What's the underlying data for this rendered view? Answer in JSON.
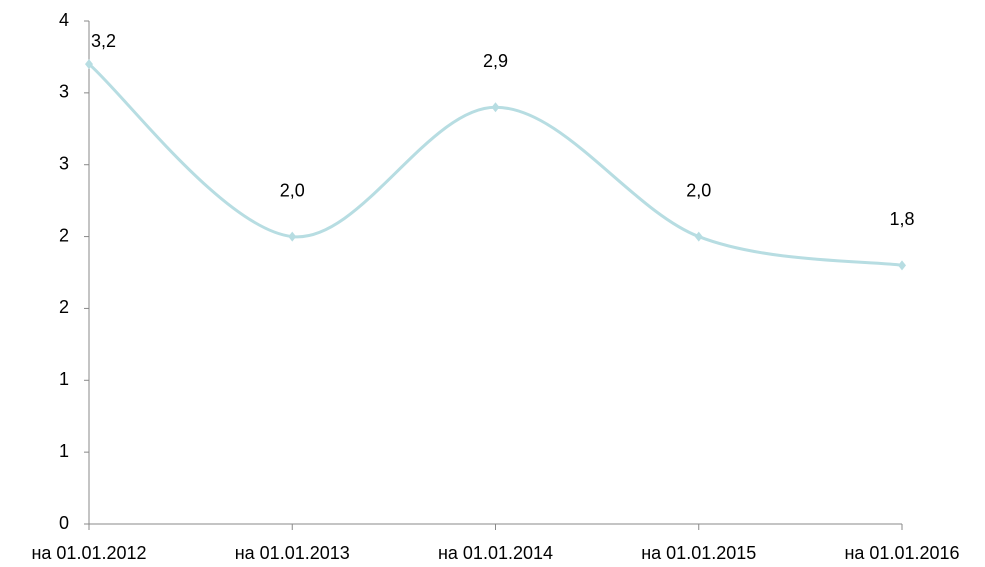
{
  "chart_data": {
    "type": "line",
    "categories": [
      "на 01.01.2012",
      "на 01.01.2013",
      "на 01.01.2014",
      "на 01.01.2015",
      "на 01.01.2016"
    ],
    "series": [
      {
        "color": "#b7dde2",
        "values": [
          3.2,
          2.0,
          2.9,
          2.0,
          1.8
        ],
        "value_labels": [
          "3,2",
          "2,0",
          "2,9",
          "2,0",
          "1,8"
        ]
      }
    ],
    "ylim": [
      0,
      3.5
    ],
    "yticks": [
      0,
      {
        "value": 0.5,
        "label": "1"
      },
      1,
      {
        "value": 1.5,
        "label": "2"
      },
      2,
      {
        "value": 2.5,
        "label": "3"
      },
      3,
      {
        "value": 3.5,
        "label": "4"
      }
    ],
    "smooth": true
  }
}
